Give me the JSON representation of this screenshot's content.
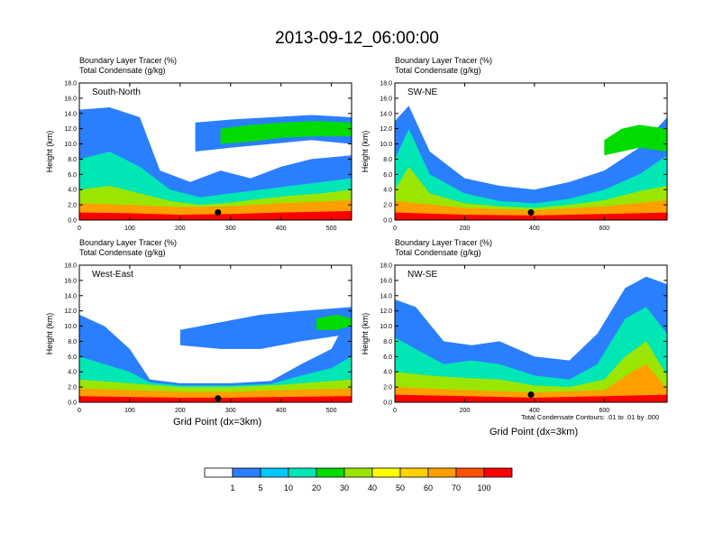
{
  "title": "2013-09-12_06:00:00",
  "header_line1": "Boundary Layer Tracer   (%)",
  "header_line2": "Total Condensate   (g/kg)",
  "ylabel": "Height (km)",
  "xlabel": "Grid Point (dx=3km)",
  "contour_note": "Total Condensate Contours: .01 to .01 by .000",
  "colors": {
    "background": "#ffffff",
    "bin_1": "#2a7fff",
    "bin_5": "#00c8ff",
    "bin_10": "#00e6b4",
    "bin_20": "#00dc00",
    "bin_30": "#9be600",
    "bin_40": "#ffff00",
    "bin_50": "#ffd200",
    "bin_60": "#ff9f00",
    "bin_70": "#ff5000",
    "bin_100": "#ff0000"
  },
  "colorbar": {
    "labels": [
      "1",
      "5",
      "10",
      "20",
      "30",
      "40",
      "50",
      "60",
      "70",
      "100"
    ],
    "colors": [
      "#ffffff",
      "#2a7fff",
      "#00c8ff",
      "#00e6b4",
      "#00dc00",
      "#9be600",
      "#ffff00",
      "#ffd200",
      "#ff9f00",
      "#ff5000",
      "#ff0000"
    ]
  },
  "chart_data": [
    {
      "type": "heatmap",
      "panel": "South-North",
      "xlim": [
        0,
        540
      ],
      "xticks": [
        0,
        100,
        200,
        300,
        400,
        500
      ],
      "ylim": [
        0,
        18
      ],
      "yticks": [
        "0.0",
        "2.0",
        "4.0",
        "6.0",
        "8.0",
        "10.0",
        "12.0",
        "14.0",
        "16.0",
        "18.0"
      ],
      "marker_x": 275,
      "marker_y": 1.0,
      "layers": [
        {
          "level": 1,
          "x": [
            0,
            60,
            120,
            160,
            220,
            280,
            340,
            400,
            460,
            540
          ],
          "ybot": [
            0,
            0,
            0,
            0,
            0,
            0,
            0,
            0,
            0,
            0
          ],
          "ytop": [
            14.5,
            14.8,
            13.5,
            6.5,
            5.0,
            6.5,
            5.5,
            7.0,
            8.0,
            8.5
          ]
        },
        {
          "level": 10,
          "x": [
            0,
            60,
            120,
            180,
            240,
            300,
            360,
            420,
            480,
            540
          ],
          "ybot": [
            0,
            0,
            0,
            0,
            0,
            0,
            0,
            0,
            0,
            0
          ],
          "ytop": [
            8.0,
            9.0,
            7.0,
            4.0,
            3.0,
            3.5,
            4.0,
            4.5,
            5.0,
            5.5
          ]
        },
        {
          "level": 30,
          "x": [
            0,
            60,
            120,
            180,
            240,
            300,
            360,
            420,
            480,
            540
          ],
          "ybot": [
            0,
            0,
            0,
            0,
            0,
            0,
            0,
            0,
            0,
            0
          ],
          "ytop": [
            4.0,
            4.5,
            3.5,
            2.5,
            2.0,
            2.3,
            2.8,
            3.2,
            3.5,
            4.0
          ]
        },
        {
          "level": 60,
          "x": [
            0,
            100,
            200,
            300,
            400,
            540
          ],
          "ybot": [
            0,
            0,
            0,
            0,
            0,
            0
          ],
          "ytop": [
            2.2,
            2.0,
            1.7,
            1.8,
            2.2,
            2.6
          ]
        },
        {
          "level": 100,
          "x": [
            0,
            100,
            200,
            300,
            400,
            540
          ],
          "ybot": [
            0,
            0,
            0,
            0,
            0,
            0
          ],
          "ytop": [
            1.0,
            0.9,
            0.7,
            0.8,
            1.0,
            1.2
          ]
        }
      ],
      "upper_layers": [
        {
          "level": 1,
          "x": [
            230,
            300,
            380,
            460,
            540
          ],
          "ybot": [
            9.0,
            9.5,
            10.0,
            10.5,
            10.0
          ],
          "ytop": [
            12.8,
            13.2,
            13.5,
            13.8,
            13.5
          ]
        },
        {
          "level": 20,
          "x": [
            280,
            340,
            400,
            470,
            540
          ],
          "ybot": [
            10.0,
            10.3,
            10.8,
            11.0,
            11.0
          ],
          "ytop": [
            12.0,
            12.5,
            12.8,
            13.0,
            12.8
          ]
        }
      ]
    },
    {
      "type": "heatmap",
      "panel": "SW-NE",
      "xlim": [
        0,
        780
      ],
      "xticks": [
        0,
        200,
        400,
        600
      ],
      "ylim": [
        0,
        18
      ],
      "yticks": [
        "0.0",
        "2.0",
        "4.0",
        "6.0",
        "8.0",
        "10.0",
        "12.0",
        "14.0",
        "16.0",
        "18.0"
      ],
      "marker_x": 390,
      "marker_y": 1.0,
      "layers": [
        {
          "level": 1,
          "x": [
            0,
            40,
            100,
            200,
            300,
            400,
            500,
            600,
            700,
            780
          ],
          "ybot": [
            0,
            0,
            0,
            0,
            0,
            0,
            0,
            0,
            0,
            0
          ],
          "ytop": [
            13.0,
            15.0,
            9.0,
            5.5,
            4.5,
            4.0,
            5.0,
            6.5,
            9.5,
            13.5
          ]
        },
        {
          "level": 10,
          "x": [
            0,
            40,
            100,
            200,
            300,
            400,
            500,
            600,
            700,
            780
          ],
          "ybot": [
            0,
            0,
            0,
            0,
            0,
            0,
            0,
            0,
            0,
            0
          ],
          "ytop": [
            8.0,
            12.0,
            6.0,
            3.5,
            2.5,
            2.2,
            2.8,
            4.0,
            6.0,
            8.5
          ]
        },
        {
          "level": 30,
          "x": [
            0,
            40,
            100,
            200,
            300,
            400,
            500,
            600,
            700,
            780
          ],
          "ybot": [
            0,
            0,
            0,
            0,
            0,
            0,
            0,
            0,
            0,
            0
          ],
          "ytop": [
            4.0,
            7.0,
            3.5,
            2.2,
            1.8,
            1.6,
            2.0,
            2.6,
            3.8,
            4.5
          ]
        },
        {
          "level": 60,
          "x": [
            0,
            200,
            400,
            600,
            780
          ],
          "ybot": [
            0,
            0,
            0,
            0,
            0
          ],
          "ytop": [
            2.5,
            1.6,
            1.3,
            1.8,
            2.6
          ]
        },
        {
          "level": 100,
          "x": [
            0,
            200,
            400,
            600,
            780
          ],
          "ybot": [
            0,
            0,
            0,
            0,
            0
          ],
          "ytop": [
            1.0,
            0.7,
            0.6,
            0.8,
            1.0
          ]
        }
      ],
      "upper_layers": [
        {
          "level": 20,
          "x": [
            600,
            650,
            700,
            780
          ],
          "ybot": [
            8.5,
            9.0,
            9.5,
            9.0
          ],
          "ytop": [
            10.5,
            12.0,
            12.5,
            12.0
          ]
        }
      ]
    },
    {
      "type": "heatmap",
      "panel": "West-East",
      "xlim": [
        0,
        540
      ],
      "xticks": [
        0,
        100,
        200,
        300,
        400,
        500
      ],
      "ylim": [
        0,
        18
      ],
      "yticks": [
        "0.0",
        "2.0",
        "4.0",
        "6.0",
        "8.0",
        "10.0",
        "12.0",
        "14.0",
        "16.0",
        "18.0"
      ],
      "marker_x": 275,
      "marker_y": 0.5,
      "layers": [
        {
          "level": 1,
          "x": [
            0,
            50,
            100,
            140,
            200,
            300,
            380,
            440,
            500,
            540
          ],
          "ybot": [
            0,
            0,
            0,
            0,
            0,
            0,
            0,
            0,
            0,
            0
          ],
          "ytop": [
            11.5,
            10.0,
            7.0,
            3.0,
            2.5,
            2.5,
            2.8,
            5.0,
            7.0,
            12.0
          ]
        },
        {
          "level": 10,
          "x": [
            0,
            50,
            100,
            140,
            200,
            300,
            380,
            440,
            500,
            540
          ],
          "ybot": [
            0,
            0,
            0,
            0,
            0,
            0,
            0,
            0,
            0,
            0
          ],
          "ytop": [
            6.0,
            5.0,
            4.0,
            2.6,
            2.2,
            2.2,
            2.4,
            3.5,
            4.5,
            6.0
          ]
        },
        {
          "level": 30,
          "x": [
            0,
            100,
            200,
            300,
            400,
            540
          ],
          "ybot": [
            0,
            0,
            0,
            0,
            0,
            0
          ],
          "ytop": [
            3.0,
            2.5,
            2.0,
            2.0,
            2.3,
            3.0
          ]
        },
        {
          "level": 60,
          "x": [
            0,
            100,
            200,
            300,
            400,
            540
          ],
          "ybot": [
            0,
            0,
            0,
            0,
            0,
            0
          ],
          "ytop": [
            1.8,
            1.6,
            1.4,
            1.4,
            1.6,
            1.8
          ]
        },
        {
          "level": 100,
          "x": [
            0,
            100,
            200,
            300,
            400,
            540
          ],
          "ybot": [
            0,
            0,
            0,
            0,
            0,
            0
          ],
          "ytop": [
            0.8,
            0.7,
            0.6,
            0.6,
            0.7,
            0.8
          ]
        }
      ],
      "upper_layers": [
        {
          "level": 1,
          "x": [
            200,
            280,
            360,
            440,
            540
          ],
          "ybot": [
            7.5,
            7.0,
            7.0,
            8.0,
            9.0
          ],
          "ytop": [
            9.5,
            10.5,
            11.5,
            12.0,
            12.5
          ]
        },
        {
          "level": 20,
          "x": [
            470,
            510,
            540
          ],
          "ybot": [
            9.5,
            9.5,
            10.0
          ],
          "ytop": [
            11.0,
            11.5,
            11.0
          ]
        }
      ]
    },
    {
      "type": "heatmap",
      "panel": "NW-SE",
      "xlim": [
        0,
        780
      ],
      "xticks": [
        0,
        200,
        400,
        600
      ],
      "ylim": [
        0,
        18
      ],
      "yticks": [
        "0.0",
        "2.0",
        "4.0",
        "6.0",
        "8.0",
        "10.0",
        "12.0",
        "14.0",
        "16.0",
        "18.0"
      ],
      "marker_x": 390,
      "marker_y": 1.0,
      "layers": [
        {
          "level": 1,
          "x": [
            0,
            60,
            140,
            220,
            300,
            400,
            500,
            580,
            660,
            720,
            780
          ],
          "ybot": [
            0,
            0,
            0,
            0,
            0,
            0,
            0,
            0,
            0,
            0,
            0
          ],
          "ytop": [
            13.5,
            12.5,
            8.0,
            7.5,
            8.0,
            6.0,
            5.5,
            9.0,
            15.0,
            16.5,
            15.5
          ]
        },
        {
          "level": 10,
          "x": [
            0,
            60,
            140,
            220,
            300,
            400,
            500,
            580,
            660,
            720,
            780
          ],
          "ybot": [
            0,
            0,
            0,
            0,
            0,
            0,
            0,
            0,
            0,
            0,
            0
          ],
          "ytop": [
            8.5,
            7.0,
            5.0,
            5.5,
            5.0,
            3.5,
            3.0,
            5.0,
            11.0,
            12.5,
            9.0
          ]
        },
        {
          "level": 30,
          "x": [
            0,
            100,
            200,
            300,
            400,
            500,
            600,
            660,
            720,
            780
          ],
          "ybot": [
            0,
            0,
            0,
            0,
            0,
            0,
            0,
            0,
            0,
            0
          ],
          "ytop": [
            4.0,
            3.5,
            3.2,
            3.0,
            2.2,
            2.0,
            3.0,
            6.0,
            8.0,
            3.5
          ]
        },
        {
          "level": 60,
          "x": [
            0,
            200,
            400,
            600,
            680,
            720,
            780
          ],
          "ybot": [
            0,
            0,
            0,
            0,
            0,
            0,
            0
          ],
          "ytop": [
            2.0,
            1.6,
            1.3,
            1.6,
            4.0,
            5.0,
            1.8
          ]
        },
        {
          "level": 100,
          "x": [
            0,
            200,
            400,
            600,
            780
          ],
          "ybot": [
            0,
            0,
            0,
            0,
            0
          ],
          "ytop": [
            1.0,
            0.8,
            0.6,
            0.8,
            1.0
          ]
        }
      ],
      "upper_layers": []
    }
  ]
}
